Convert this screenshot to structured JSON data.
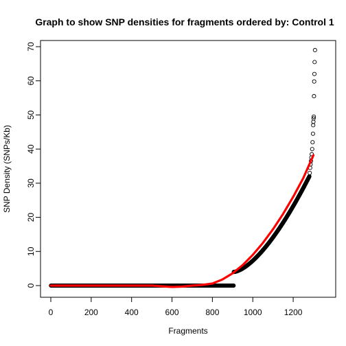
{
  "chart_data": {
    "type": "scatter",
    "title": "Graph to show SNP densities for fragments ordered by: Control 1",
    "xlabel": "Fragments",
    "ylabel": "SNP Density (SNPs/Kb)",
    "xlim": [
      0,
      1300
    ],
    "ylim": [
      0,
      70
    ],
    "xticks": [
      "0",
      "200",
      "400",
      "600",
      "800",
      "1000",
      "1200"
    ],
    "yticks": [
      "0",
      "10",
      "20",
      "30",
      "40",
      "50",
      "60",
      "70"
    ],
    "grid": false,
    "legend": "none",
    "colors": {
      "points": "#000000",
      "trend": "#ff0000",
      "axis": "#000000"
    },
    "series": [
      {
        "kind": "points",
        "segments": [
          {
            "x_start": 1,
            "x_end": 905,
            "y_start": 0,
            "y_end": 0,
            "curve": 1
          },
          {
            "x_start": 906,
            "x_end": 1280,
            "y_start": 4,
            "y_end": 32,
            "curve": 1.55
          }
        ],
        "extra_points": [
          {
            "x": 1282,
            "y": 33.0
          },
          {
            "x": 1284,
            "y": 34.5
          },
          {
            "x": 1286,
            "y": 35.5
          },
          {
            "x": 1288,
            "y": 36.5
          },
          {
            "x": 1290,
            "y": 37.5
          },
          {
            "x": 1292,
            "y": 38.5
          },
          {
            "x": 1294,
            "y": 40.0
          },
          {
            "x": 1296,
            "y": 42.0
          },
          {
            "x": 1298,
            "y": 44.5
          },
          {
            "x": 1299,
            "y": 47.0
          },
          {
            "x": 1300,
            "y": 48.0
          },
          {
            "x": 1301,
            "y": 49.0
          },
          {
            "x": 1302,
            "y": 49.5
          },
          {
            "x": 1303,
            "y": 55.5
          },
          {
            "x": 1304,
            "y": 59.8
          },
          {
            "x": 1305,
            "y": 62.0
          },
          {
            "x": 1306,
            "y": 65.5
          },
          {
            "x": 1308,
            "y": 69.0
          }
        ]
      },
      {
        "kind": "trend-line",
        "x": [
          0,
          100,
          200,
          300,
          400,
          500,
          550,
          600,
          650,
          700,
          750,
          800,
          850,
          900,
          950,
          1000,
          1050,
          1100,
          1150,
          1200,
          1250,
          1300
        ],
        "y": [
          0.0,
          0.0,
          0.0,
          0.0,
          0.0,
          0.0,
          -0.2,
          -0.4,
          -0.3,
          0.0,
          0.2,
          0.6,
          1.8,
          3.6,
          6.0,
          9.0,
          12.5,
          16.5,
          21.0,
          26.0,
          31.5,
          38.2
        ]
      }
    ]
  }
}
